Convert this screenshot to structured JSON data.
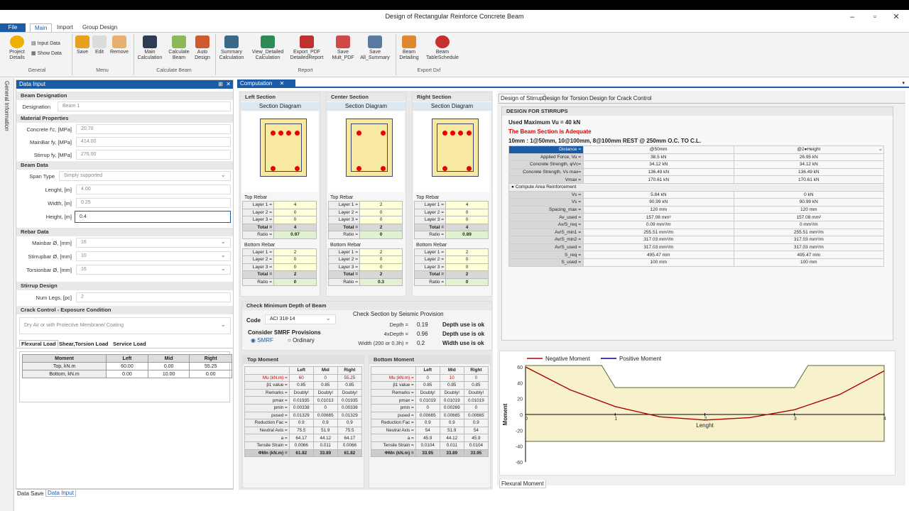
{
  "window": {
    "title": "Design of Rectangular Reinforce Concrete Beam"
  },
  "menu_tabs": [
    "File",
    "Main",
    "Import",
    "Group Design"
  ],
  "ribbon": {
    "general": {
      "project": "Project\nDetails",
      "input": "Input Data",
      "show": "Show Data",
      "label": "General"
    },
    "menu": {
      "save": "Save",
      "edit": "Edit",
      "remove": "Remove",
      "label": "Menu"
    },
    "calc": {
      "main": "Main\nCalculation",
      "beam": "Calculate\nBeam",
      "auto": "Auto\nDesign",
      "label": "Calculate Beam"
    },
    "report": {
      "summary": "Summary\nCalculation",
      "view": "View_Detailed\nCalculation",
      "export": "Export_PDF\nDetailedReport",
      "save_mult": "Save\nMult_PDF",
      "save_all": "Save\nAll_Summary",
      "label": "Report"
    },
    "dxf": {
      "detail": "Beam\nDetailing",
      "schedule": "Beam\nTableSchedule",
      "label": "Export Dxf"
    }
  },
  "side_tab": "General Information",
  "input_panel": {
    "title": "Data Input",
    "beam_designation": "Beam Designation",
    "designation_label": "Designation",
    "designation_value": "Beam 1",
    "material": "Material Properties",
    "fc_label": "Concrete f'c, [MPa]",
    "fc": "20.70",
    "fy_label": "MainBar fy, [MPa]",
    "fy": "414.00",
    "fys_label": "Stirrup fy, [MPa]",
    "fys": "276.00",
    "beam_data": "Beam Data",
    "span_label": "Span Type",
    "span": "Simply supported",
    "length_label": "Lenght, [m]",
    "length": "4.00",
    "width_label": "Width, [m]",
    "width": "0.25",
    "height_label": "Height, [m]",
    "height": "0.4",
    "rebar": "Rebar Data",
    "main_label": "Mainbar Ø, [mm]",
    "main": "16",
    "stir_label": "Stirrupbar Ø, [mm]",
    "stir": "10",
    "tors_label": "Torsionbar Ø, [mm]",
    "tors": "16",
    "stirrup": "Stirrup Design",
    "legs_label": "Num Legs, [pc]",
    "legs": "2",
    "crack": "Crack Control - Exposure Condition",
    "exposure": "Dry Air or with Protective Membrane/ Coating",
    "load_tabs": [
      "Flexural Load",
      "Shear,Torsion Load",
      "Service Load"
    ],
    "load_table": {
      "headers": [
        "Moment",
        "Left",
        "Mid",
        "Right"
      ],
      "rows": [
        [
          "Top, kN.m",
          "60.00",
          "0.00",
          "55.25"
        ],
        [
          "Bottom, kN.m",
          "0.00",
          "10.00",
          "0.00"
        ]
      ]
    },
    "bottom_tabs": [
      "Data Save",
      "Data Input"
    ]
  },
  "computation": {
    "tab": "Computation",
    "sections": [
      {
        "title": "Left Section",
        "diagram": "Section Diagram",
        "top": [
          "4",
          "0",
          "0",
          "4",
          "0.97"
        ],
        "bottom": [
          "2",
          "0",
          "0",
          "2",
          "0"
        ]
      },
      {
        "title": "Center Section",
        "diagram": "Section Diagram",
        "top": [
          "2",
          "0",
          "0",
          "2",
          "0"
        ],
        "bottom": [
          "2",
          "0",
          "0",
          "2",
          "0.3"
        ]
      },
      {
        "title": "Right Section",
        "diagram": "Section Diagram",
        "top": [
          "4",
          "0",
          "0",
          "4",
          "0.89"
        ],
        "bottom": [
          "2",
          "0",
          "0",
          "2",
          "0"
        ]
      }
    ],
    "rebar_labels": [
      "Layer 1 =",
      "Layer 2 =",
      "Layer 3 =",
      "Total =",
      "Ratio ="
    ],
    "top_rebar": "Top Rebar",
    "bottom_rebar": "Bottom Rebar",
    "min_depth": {
      "title": "Check Minimum Depth of Beam",
      "code_label": "Code",
      "code": "ACI 318-14",
      "smrf_title": "Consider SMRF Provisions",
      "smrf": "SMRF",
      "ordinary": "Ordinary",
      "seismic": "Check Section by Seismic Provision",
      "rows": [
        [
          "Depth =",
          "0.19",
          "Depth use is ok"
        ],
        [
          "4xDepth =",
          "0.96",
          "Depth use is ok"
        ],
        [
          "Width (200 or 0.3h) =",
          "0.2",
          "Width use is ok"
        ]
      ]
    },
    "top_moment": {
      "title": "Top Moment",
      "headers": [
        "",
        "Left",
        "Mid",
        "Right"
      ],
      "rows": [
        [
          "Mu (kN.m) =",
          "60",
          "0",
          "55.25"
        ],
        [
          "β1 value =",
          "0.85",
          "0.85",
          "0.85"
        ],
        [
          "Remarks =",
          "Doubly!",
          "Doubly!",
          "Doubly!"
        ],
        [
          "pmax =",
          "0.01935",
          "0.01013",
          "0.01935"
        ],
        [
          "pmin =",
          "0.00338",
          "0",
          "0.00338"
        ],
        [
          "pused =",
          "0.01329",
          "0.00665",
          "0.01329"
        ],
        [
          "Reduction Fac =",
          "0.9",
          "0.9",
          "0.9"
        ],
        [
          "Neutral Axis =",
          "75.5",
          "51.9",
          "75.5"
        ],
        [
          "a =",
          "64.17",
          "44.12",
          "64.17"
        ],
        [
          "Tensile Strain =",
          "0.0066",
          "0.011",
          "0.0066"
        ],
        [
          "ΦMn (kN.m) =",
          "61.82",
          "33.89",
          "61.82"
        ]
      ]
    },
    "bottom_moment": {
      "title": "Bottom Moment",
      "headers": [
        "",
        "Left",
        "Mid",
        "Right"
      ],
      "rows": [
        [
          "Mu (kN.m) =",
          "0",
          "10",
          "0"
        ],
        [
          "β1 value =",
          "0.85",
          "0.85",
          "0.85"
        ],
        [
          "Remarks =",
          "Doubly!",
          "Doubly!",
          "Doubly!"
        ],
        [
          "pmax =",
          "0.01019",
          "0.01019",
          "0.01019"
        ],
        [
          "pmin =",
          "0",
          "0.00269",
          "0"
        ],
        [
          "pused =",
          "0.00665",
          "0.00665",
          "0.00665"
        ],
        [
          "Reduction Fac =",
          "0.9",
          "0.9",
          "0.9"
        ],
        [
          "Neutral Axis =",
          "54",
          "51.9",
          "54"
        ],
        [
          "a =",
          "45.9",
          "44.12",
          "45.9"
        ],
        [
          "Tensile Strain =",
          "0.0104",
          "0.011",
          "0.0104"
        ],
        [
          "ΦMn (kN.m) =",
          "33.95",
          "33.89",
          "33.95"
        ]
      ]
    }
  },
  "stirrup": {
    "tabs": [
      "Design of Stirrup",
      "Design for Torsion",
      "Design for Crack Control"
    ],
    "title": "DESIGN FOR STIRRUPS",
    "vu": "Used Maximum Vu = 40 kN",
    "adequate": "The Beam Section is Adequate",
    "spacing": "10mm : 1@50mm, 10@100mm, 8@100mm REST @ 250mm O.C. TO C.L.",
    "rows": [
      [
        "Distance =",
        "@50mm",
        "@2●Height"
      ],
      [
        "Applied Force, Vu =",
        "38.5 kN",
        "26.95 kN"
      ],
      [
        "Concrete Strength, φVc=",
        "34.12 kN",
        "34.12 kN"
      ],
      [
        "Concrete Strength, Vs max=",
        "136.49 kN",
        "136.49 kN"
      ],
      [
        "Vmax =",
        "170.61 kN",
        "170.61 kN"
      ],
      [
        "● Compute Area Reinforcement",
        "",
        ""
      ],
      [
        "Vs =",
        "5.84 kN",
        "0 kN"
      ],
      [
        "Vs =",
        "90.99 kN",
        "90.99 kN"
      ],
      [
        "Spacing_max =",
        "120 mm",
        "120 mm"
      ],
      [
        "Av_used =",
        "157.08 mm²",
        "157.08 mm²"
      ],
      [
        "Av/S_req =",
        "0.09 mm²/m",
        "0 mm²/m"
      ],
      [
        "Av/S_min1 =",
        "255.51 mm²/m",
        "255.51 mm²/m"
      ],
      [
        "Av/S_min2 =",
        "317.03 mm²/m",
        "317.03 mm²/m"
      ],
      [
        "Av/S_used =",
        "317.03 mm²/m",
        "317.03 mm²/m"
      ],
      [
        "S_req =",
        "495.47 mm",
        "495.47 mm"
      ],
      [
        "S_used =",
        "100 mm",
        "100 mm"
      ]
    ]
  },
  "chart_data": {
    "type": "line",
    "legend": [
      "Negative Moment",
      "Positive Moment"
    ],
    "xlabel": "Lenght",
    "ylabel": "Moment",
    "xlim": [
      0,
      4
    ],
    "ylim": [
      -60,
      60
    ],
    "xticks": [
      "0",
      "1",
      "2",
      "3",
      "4"
    ],
    "yticks": [
      "60",
      "40",
      "20",
      "0",
      "-20",
      "-40",
      "-60"
    ],
    "series": [
      {
        "name": "Negative Moment",
        "x": [
          0,
          0.5,
          1,
          1.5,
          2,
          2.5,
          3,
          3.5,
          4
        ],
        "values": [
          60,
          31,
          10,
          -3,
          -7,
          -4,
          6,
          25,
          55
        ]
      }
    ],
    "capacity_top": [
      [
        0,
        61.82
      ],
      [
        0.85,
        61.82
      ],
      [
        1,
        33.89
      ],
      [
        3,
        33.89
      ],
      [
        3.15,
        61.82
      ],
      [
        4,
        61.82
      ]
    ],
    "capacity_bottom": -33.95,
    "tab": "Flexural Moment"
  },
  "colors": {
    "accent": "#1a5ca8",
    "negative": "#b00000",
    "positive": "#000080",
    "fill": "#f7f2cc"
  }
}
